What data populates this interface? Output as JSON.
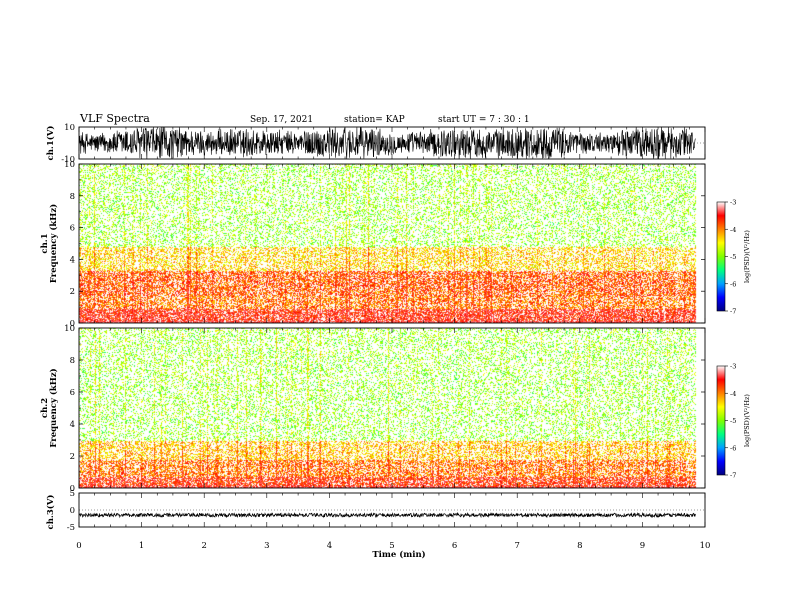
{
  "header": {
    "title": "VLF Spectra",
    "date": "Sep. 17, 2021",
    "station": "station= KAP",
    "start": "start UT =   7 : 30 : 1"
  },
  "chart_data": [
    {
      "type": "line",
      "name": "ch1-waveform",
      "ylabel": "ch.1(V)",
      "ylim": [
        -10,
        10
      ],
      "yticklabels": [
        "10",
        "-10"
      ],
      "xlim": [
        0,
        10
      ],
      "note_visible_data": "dense noise waveform spanning roughly -10 to 10 V"
    },
    {
      "type": "heatmap",
      "name": "ch1-spectrogram",
      "ylabel": "ch.1\nFrequency (kHz)",
      "ylim": [
        0,
        10
      ],
      "yticks": [
        0,
        2,
        4,
        6,
        8,
        10
      ],
      "xlim": [
        0,
        10
      ],
      "x_end_data": 9.85,
      "colorbar": {
        "label": "log(PSD)(V²/Hz)",
        "range": [
          -7,
          -3
        ],
        "ticks": [
          -3,
          -4,
          -5,
          -6,
          -7
        ]
      },
      "band_profile": [
        {
          "f": [
            0,
            0.15
          ],
          "level": -3.3
        },
        {
          "f": [
            0.15,
            0.9
          ],
          "level": -3.6
        },
        {
          "f": [
            0.9,
            1.7
          ],
          "level": -4.0
        },
        {
          "f": [
            1.7,
            3.3
          ],
          "level": -3.9
        },
        {
          "f": [
            3.3,
            4.8
          ],
          "level": -4.4
        },
        {
          "f": [
            4.8,
            10
          ],
          "level": -5.0
        }
      ]
    },
    {
      "type": "heatmap",
      "name": "ch2-spectrogram",
      "ylabel": "ch.2\nFrequency (kHz)",
      "ylim": [
        0,
        10
      ],
      "yticks": [
        0,
        2,
        4,
        6,
        8,
        10
      ],
      "xlim": [
        0,
        10
      ],
      "x_end_data": 9.85,
      "colorbar": {
        "label": "log(PSD)(V²/Hz)",
        "range": [
          -7,
          -3
        ],
        "ticks": [
          -3,
          -4,
          -5,
          -6,
          -7
        ]
      },
      "band_profile": [
        {
          "f": [
            0,
            0.15
          ],
          "level": -3.4
        },
        {
          "f": [
            0.15,
            0.7
          ],
          "level": -3.7
        },
        {
          "f": [
            0.7,
            1.8
          ],
          "level": -4.0
        },
        {
          "f": [
            1.8,
            3.0
          ],
          "level": -4.3
        },
        {
          "f": [
            3.0,
            10
          ],
          "level": -5.0
        }
      ]
    },
    {
      "type": "line",
      "name": "ch3-waveform",
      "ylabel": "ch.3(V)",
      "ylim": [
        -5,
        5
      ],
      "yticks": [
        -5,
        0,
        5
      ],
      "xlim": [
        0,
        10
      ],
      "level": -1.5
    }
  ],
  "xaxis": {
    "label": "Time  (min)",
    "ticks": [
      0,
      1,
      2,
      3,
      4,
      5,
      6,
      7,
      8,
      9,
      10
    ]
  },
  "colors": {
    "colormap": [
      "#000080",
      "#0000ff",
      "#00a0ff",
      "#00ff80",
      "#80ff00",
      "#ffff00",
      "#ff8000",
      "#ff0000",
      "#ffffff"
    ]
  }
}
